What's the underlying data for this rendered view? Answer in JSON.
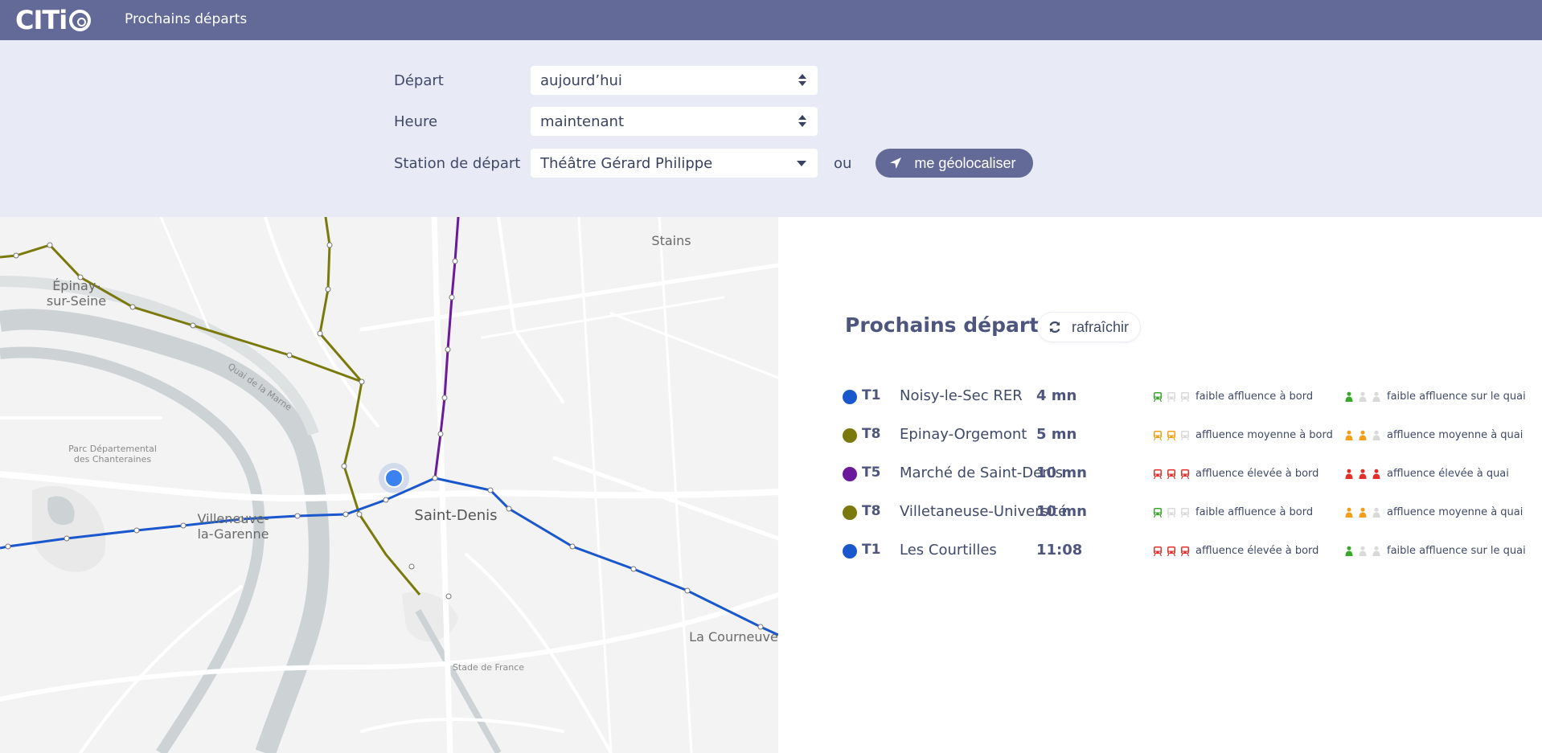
{
  "topbar": {
    "logo_text": "CITi",
    "title": "Prochains départs"
  },
  "form": {
    "depart_label": "Départ",
    "depart_value": "aujourd’hui",
    "heure_label": "Heure",
    "heure_value": "maintenant",
    "station_label": "Station de départ",
    "station_value": "Théâtre Gérard Philippe",
    "ou": "ou",
    "geo_button": "me géolocaliser"
  },
  "map": {
    "labels": {
      "epinay": "Épinay-\nsur-Seine",
      "stains": "Stains",
      "quai": "Quai de la Marne",
      "parc": "Parc Départemental\ndes Chanteraines",
      "villeneuve": "Villeneuve-\nla-Garenne",
      "saint_denis": "Saint-Denis",
      "courneuve": "La Courneuve",
      "stade": "Stade de France"
    },
    "line_colors": {
      "T1": "#1a56cc",
      "T8": "#7a7a0c",
      "T5": "#6a1a9a"
    }
  },
  "panel": {
    "title": "Prochains départs",
    "refresh": "rafraîchir",
    "departures": [
      {
        "line": "T1",
        "color": "#1a56cc",
        "destination": "Noisy-le-Sec RER",
        "time": "4 mn",
        "bord": {
          "level": 1,
          "color": "#3aa62c",
          "label": "faible affluence à bord"
        },
        "quai": {
          "level": 1,
          "color": "#3aa62c",
          "label": "faible affluence sur le quai"
        }
      },
      {
        "line": "T8",
        "color": "#7a7a0c",
        "destination": "Epinay-Orgemont",
        "time": "5 mn",
        "bord": {
          "level": 2,
          "color": "#f2a01a",
          "label": "affluence moyenne à bord"
        },
        "quai": {
          "level": 2,
          "color": "#f2a01a",
          "label": "affluence moyenne à quai"
        }
      },
      {
        "line": "T5",
        "color": "#6a1a9a",
        "destination": "Marché de Saint-Denis",
        "time": "10 mn",
        "bord": {
          "level": 3,
          "color": "#e0302a",
          "label": "affluence élevée à bord"
        },
        "quai": {
          "level": 3,
          "color": "#e0302a",
          "label": "affluence élevée à quai"
        }
      },
      {
        "line": "T8",
        "color": "#7a7a0c",
        "destination": "Villetaneuse-Université",
        "time": "10 mn",
        "bord": {
          "level": 1,
          "color": "#3aa62c",
          "label": "faible affluence à bord"
        },
        "quai": {
          "level": 2,
          "color": "#f2a01a",
          "label": "affluence moyenne à quai"
        }
      },
      {
        "line": "T1",
        "color": "#1a56cc",
        "destination": "Les Courtilles",
        "time": "11:08",
        "bord": {
          "level": 3,
          "color": "#e0302a",
          "label": "affluence élevée à bord"
        },
        "quai": {
          "level": 1,
          "color": "#3aa62c",
          "label": "faible affluence sur le quai"
        }
      }
    ]
  },
  "icons": {
    "geo": "location-arrow-icon",
    "refresh": "refresh-icon",
    "tram": "tram-icon",
    "person": "person-icon"
  }
}
